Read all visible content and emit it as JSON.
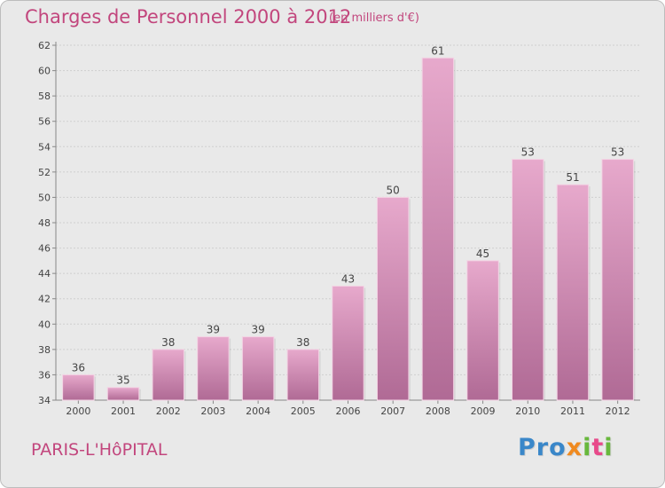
{
  "header": {
    "title": "Charges de Personnel 2000 à 2012",
    "subtitle": "(en milliers d'€)"
  },
  "footer": {
    "commune": "PARIS-L'HôPITAL",
    "logo": [
      {
        "char": "P",
        "color": "#3a87c9"
      },
      {
        "char": "r",
        "color": "#3a87c9"
      },
      {
        "char": "o",
        "color": "#3a87c9"
      },
      {
        "char": "x",
        "color": "#f08a1f"
      },
      {
        "char": "i",
        "color": "#68b83c"
      },
      {
        "char": "t",
        "color": "#e84a8a"
      },
      {
        "char": "i",
        "color": "#68b83c"
      }
    ]
  },
  "colors": {
    "accent": "#c2467d",
    "bar_top": "#e7a9cc",
    "bar_bottom": "#b06a95"
  },
  "chart_data": {
    "type": "bar",
    "title": "Charges de Personnel 2000 à 2012",
    "subtitle": "(en milliers d'€)",
    "categories": [
      "2000",
      "2001",
      "2002",
      "2003",
      "2004",
      "2005",
      "2006",
      "2007",
      "2008",
      "2009",
      "2010",
      "2011",
      "2012"
    ],
    "values": [
      36,
      35,
      38,
      39,
      39,
      38,
      43,
      50,
      61,
      45,
      53,
      51,
      53
    ],
    "ylim": [
      34,
      62
    ],
    "yticks": [
      34,
      36,
      38,
      40,
      42,
      44,
      46,
      48,
      50,
      52,
      54,
      56,
      58,
      60,
      62
    ],
    "grid": "horizontal",
    "data_labels": true,
    "xlabel": "",
    "ylabel": ""
  }
}
